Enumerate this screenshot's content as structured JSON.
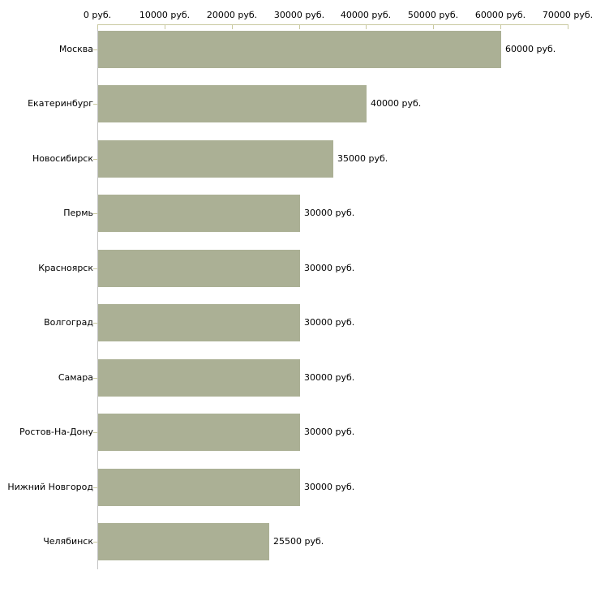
{
  "chart_data": {
    "type": "bar",
    "orientation": "horizontal",
    "title": "",
    "xlabel": "",
    "ylabel": "",
    "unit": "руб.",
    "categories": [
      "Москва",
      "Екатеринбург",
      "Новосибирск",
      "Пермь",
      "Красноярск",
      "Волгоград",
      "Самара",
      "Ростов-На-Дону",
      "Нижний Новгород",
      "Челябинск"
    ],
    "values": [
      60000,
      40000,
      35000,
      30000,
      30000,
      30000,
      30000,
      30000,
      30000,
      25500
    ],
    "value_labels": [
      "60000 руб.",
      "40000 руб.",
      "35000 руб.",
      "30000 руб.",
      "30000 руб.",
      "30000 руб.",
      "30000 руб.",
      "30000 руб.",
      "30000 руб.",
      "25500 руб."
    ],
    "x_ticks": [
      0,
      10000,
      20000,
      30000,
      40000,
      50000,
      60000,
      70000
    ],
    "x_tick_labels": [
      "0 руб.",
      "10000 руб.",
      "20000 руб.",
      "30000 руб.",
      "40000 руб.",
      "50000 руб.",
      "60000 руб.",
      "70000 руб."
    ],
    "xlim": [
      0,
      70000
    ],
    "grid": false,
    "legend": null
  },
  "colors": {
    "bar_fill": "#abb095",
    "axis_line": "#c9c99f",
    "baseline": "#c4c4c4",
    "text": "#000000",
    "background": "#ffffff"
  }
}
